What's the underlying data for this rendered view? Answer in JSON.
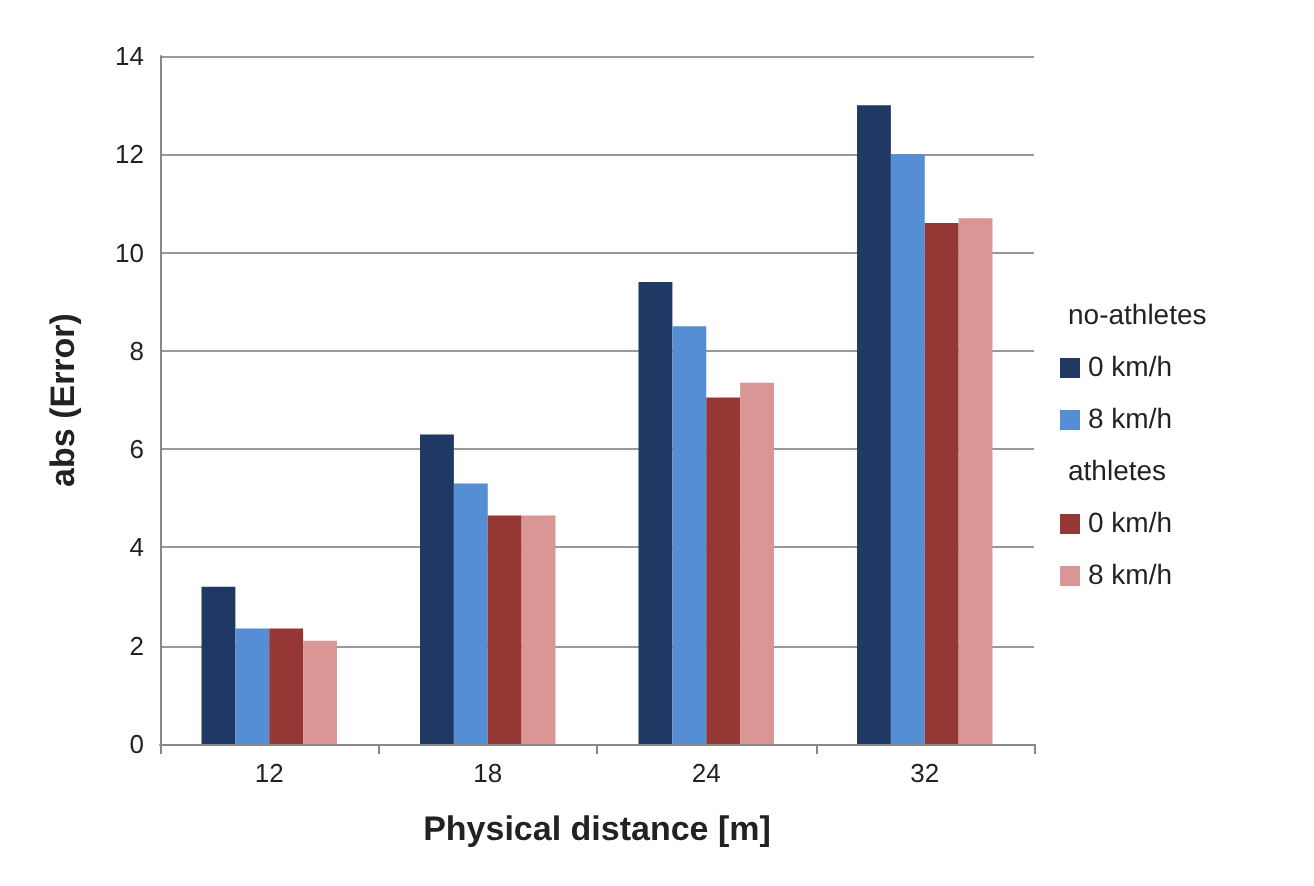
{
  "chart_data": {
    "type": "bar",
    "xlabel": "Physical distance [m]",
    "ylabel": "abs (Error)",
    "categories": [
      "12",
      "18",
      "24",
      "32"
    ],
    "series": [
      {
        "name": "0 km/h",
        "color": "#1f3864",
        "values": [
          3.2,
          6.3,
          9.4,
          13.0
        ]
      },
      {
        "name": "8 km/h",
        "color": "#558ed5",
        "values": [
          2.35,
          5.3,
          8.5,
          12.0
        ]
      },
      {
        "name": "0 km/h",
        "color": "#953735",
        "values": [
          2.35,
          4.65,
          7.05,
          10.6
        ]
      },
      {
        "name": "8 km/h",
        "color": "#d99694",
        "values": [
          2.1,
          4.65,
          7.35,
          10.7
        ]
      }
    ],
    "annotations": [
      "no-athletes",
      "athletes"
    ],
    "ylim": [
      0,
      14
    ],
    "yticks": [
      0,
      2,
      4,
      6,
      8,
      10,
      12,
      14
    ],
    "grid": "y",
    "legend": "right"
  }
}
